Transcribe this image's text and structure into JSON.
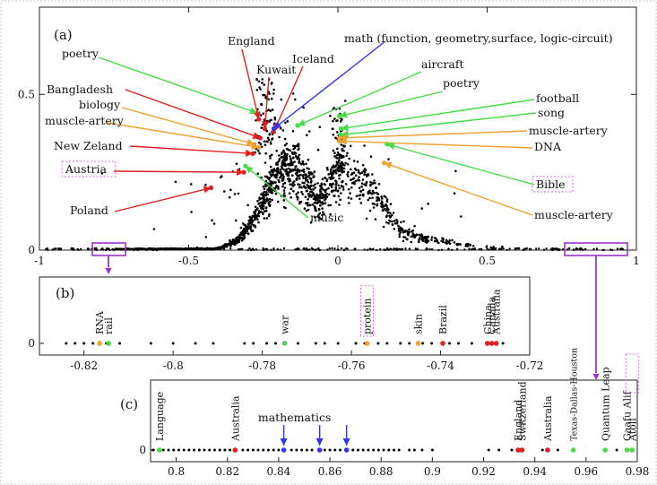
{
  "chart_data": [
    {
      "type": "scatter",
      "panel_label": "(a)",
      "xlim": [
        -1,
        1
      ],
      "ylim": [
        0,
        0.78
      ],
      "x_ticks": [
        "-1",
        "-0.5",
        "0",
        "0.5",
        "1"
      ],
      "x_tick_values": [
        -1,
        -0.5,
        0,
        0.5,
        1
      ],
      "y_ticks": [
        "0",
        "0.5"
      ],
      "y_tick_values": [
        0,
        0.5
      ],
      "highlight_boxes": [
        {
          "x_range": [
            -0.82,
            -0.72
          ]
        },
        {
          "x_range": [
            0.78,
            0.98
          ]
        }
      ],
      "labels": [
        {
          "text": "poetry",
          "color": "#44dd44",
          "x": -0.27,
          "y": 0.44,
          "boxed": false
        },
        {
          "text": "England",
          "color": "#e02020",
          "x": -0.265,
          "y": 0.42,
          "boxed": false
        },
        {
          "text": "Kuwait",
          "color": "#e02020",
          "x": -0.245,
          "y": 0.39,
          "boxed": false
        },
        {
          "text": "Iceland",
          "color": "#e02020",
          "x": -0.215,
          "y": 0.38,
          "boxed": false
        },
        {
          "text": "math (function, geometry,surface, logic-circuit)",
          "color": "#3333ee",
          "x": -0.215,
          "y": 0.39,
          "boxed": false
        },
        {
          "text": "aircraft",
          "color": "#44dd44",
          "x": -0.135,
          "y": 0.4,
          "boxed": false
        },
        {
          "text": "poetry",
          "color": "#44dd44",
          "x": 0.005,
          "y": 0.43,
          "boxed": false
        },
        {
          "text": "Bangladesh",
          "color": "#e02020",
          "x": -0.26,
          "y": 0.36,
          "boxed": false
        },
        {
          "text": "biology",
          "color": "#f0a030",
          "x": -0.28,
          "y": 0.34,
          "boxed": false
        },
        {
          "text": "muscle-artery",
          "color": "#f0a030",
          "x": -0.265,
          "y": 0.33,
          "boxed": false
        },
        {
          "text": "New Zeland",
          "color": "#e02020",
          "x": -0.285,
          "y": 0.31,
          "boxed": false
        },
        {
          "text": "Austria",
          "color": "#e02020",
          "x": -0.315,
          "y": 0.25,
          "boxed": true
        },
        {
          "text": "Poland",
          "color": "#e02020",
          "x": -0.425,
          "y": 0.2,
          "boxed": false
        },
        {
          "text": "music",
          "color": "#44dd44",
          "x": -0.31,
          "y": 0.27,
          "boxed": false
        },
        {
          "text": "football",
          "color": "#44dd44",
          "x": 0.01,
          "y": 0.39,
          "boxed": false
        },
        {
          "text": "song",
          "color": "#44dd44",
          "x": 0.01,
          "y": 0.37,
          "boxed": false
        },
        {
          "text": "muscle-artery",
          "color": "#f0a030",
          "x": 0.005,
          "y": 0.36,
          "boxed": false
        },
        {
          "text": "DNA",
          "color": "#f0a030",
          "x": 0.005,
          "y": 0.35,
          "boxed": false
        },
        {
          "text": "Bible",
          "color": "#44dd44",
          "x": 0.165,
          "y": 0.34,
          "boxed": true
        },
        {
          "text": "muscle-artery",
          "color": "#f0a030",
          "x": 0.155,
          "y": 0.28,
          "boxed": false
        }
      ]
    },
    {
      "type": "scatter",
      "panel_label": "(b)",
      "xlim": [
        -0.83,
        -0.72
      ],
      "x_ticks": [
        "-0.82",
        "-0.8",
        "-0.78",
        "-0.76",
        "-0.74",
        "-0.72"
      ],
      "x_tick_values": [
        -0.82,
        -0.8,
        -0.78,
        -0.76,
        -0.74,
        -0.72
      ],
      "y_ticks": [
        "0"
      ],
      "y_tick_values": [
        0
      ],
      "black_points": [
        -0.824,
        -0.822,
        -0.82,
        -0.818,
        -0.815,
        -0.812,
        -0.805,
        -0.8,
        -0.795,
        -0.791,
        -0.784,
        -0.782,
        -0.779,
        -0.777,
        -0.772,
        -0.768,
        -0.766,
        -0.763,
        -0.759,
        -0.757,
        -0.754,
        -0.752,
        -0.749,
        -0.747,
        -0.744,
        -0.742,
        -0.738,
        -0.736,
        -0.733,
        -0.726
      ],
      "labels": [
        {
          "text": "RNA",
          "color": "#f0a030",
          "x": -0.8165,
          "boxed": false
        },
        {
          "text": "rail",
          "color": "#44dd44",
          "x": -0.8145,
          "boxed": false
        },
        {
          "text": "war",
          "color": "#44dd44",
          "x": -0.775,
          "boxed": false
        },
        {
          "text": "protein",
          "color": "#f0a030",
          "x": -0.7565,
          "boxed": true
        },
        {
          "text": "skin",
          "color": "#f0a030",
          "x": -0.745,
          "boxed": false
        },
        {
          "text": "Brazil",
          "color": "#e02020",
          "x": -0.7395,
          "boxed": false
        },
        {
          "text": "China",
          "color": "#e02020",
          "x": -0.7295,
          "boxed": false
        },
        {
          "text": "Canada",
          "color": "#e02020",
          "x": -0.7285,
          "boxed": false
        },
        {
          "text": "Australia",
          "color": "#e02020",
          "x": -0.7275,
          "boxed": false
        }
      ]
    },
    {
      "type": "scatter",
      "panel_label": "(c)",
      "xlim": [
        0.79,
        0.98
      ],
      "x_ticks": [
        "0.8",
        "0.82",
        "0.84",
        "0.86",
        "0.88",
        "0.9",
        "0.92",
        "0.94",
        "0.96",
        "0.98"
      ],
      "x_tick_values": [
        0.8,
        0.82,
        0.84,
        0.86,
        0.88,
        0.9,
        0.92,
        0.94,
        0.96,
        0.98
      ],
      "y_ticks": [
        "0"
      ],
      "y_tick_values": [
        0
      ],
      "black_points": [
        0.791,
        0.793,
        0.795,
        0.797,
        0.799,
        0.801,
        0.803,
        0.805,
        0.807,
        0.809,
        0.811,
        0.813,
        0.815,
        0.817,
        0.819,
        0.821,
        0.826,
        0.828,
        0.83,
        0.832,
        0.834,
        0.836,
        0.838,
        0.84,
        0.845,
        0.847,
        0.849,
        0.851,
        0.853,
        0.858,
        0.86,
        0.862,
        0.864,
        0.869,
        0.871,
        0.873,
        0.875,
        0.877,
        0.879,
        0.881,
        0.883,
        0.885,
        0.887,
        0.891,
        0.893,
        0.896,
        0.9,
        0.922,
        0.926,
        0.931,
        0.943,
        0.949,
        0.972
      ],
      "labels": [
        {
          "text": "Language",
          "color": "#44dd44",
          "x": 0.7935,
          "boxed": false,
          "arrow": false
        },
        {
          "text": "Australia",
          "color": "#e02020",
          "x": 0.823,
          "boxed": false,
          "arrow": false
        },
        {
          "text": "mathematics",
          "color": "#3333ee",
          "x": 0.842,
          "boxed": false,
          "arrow": true
        },
        {
          "text": "",
          "color": "#3333ee",
          "x": 0.856,
          "boxed": false,
          "arrow": true
        },
        {
          "text": "",
          "color": "#3333ee",
          "x": 0.8665,
          "boxed": false,
          "arrow": true
        },
        {
          "text": "England",
          "color": "#e02020",
          "x": 0.9335,
          "boxed": false,
          "arrow": false
        },
        {
          "text": "Switzerland",
          "color": "#e02020",
          "x": 0.935,
          "boxed": false,
          "arrow": false
        },
        {
          "text": "Australia",
          "color": "#e02020",
          "x": 0.945,
          "boxed": false,
          "arrow": false
        },
        {
          "text": "Texas-Dallas-Houston",
          "color": "#44dd44",
          "x": 0.955,
          "boxed": false,
          "arrow": false
        },
        {
          "text": "Quantum Leap",
          "color": "#44dd44",
          "x": 0.9675,
          "boxed": false,
          "arrow": false
        },
        {
          "text": "Gaafu Alif",
          "color": "#44dd44",
          "x": 0.976,
          "boxed": false,
          "arrow": false
        },
        {
          "text": "Atoll",
          "color": "#44dd44",
          "x": 0.978,
          "boxed": true,
          "arrow": false
        }
      ]
    }
  ]
}
